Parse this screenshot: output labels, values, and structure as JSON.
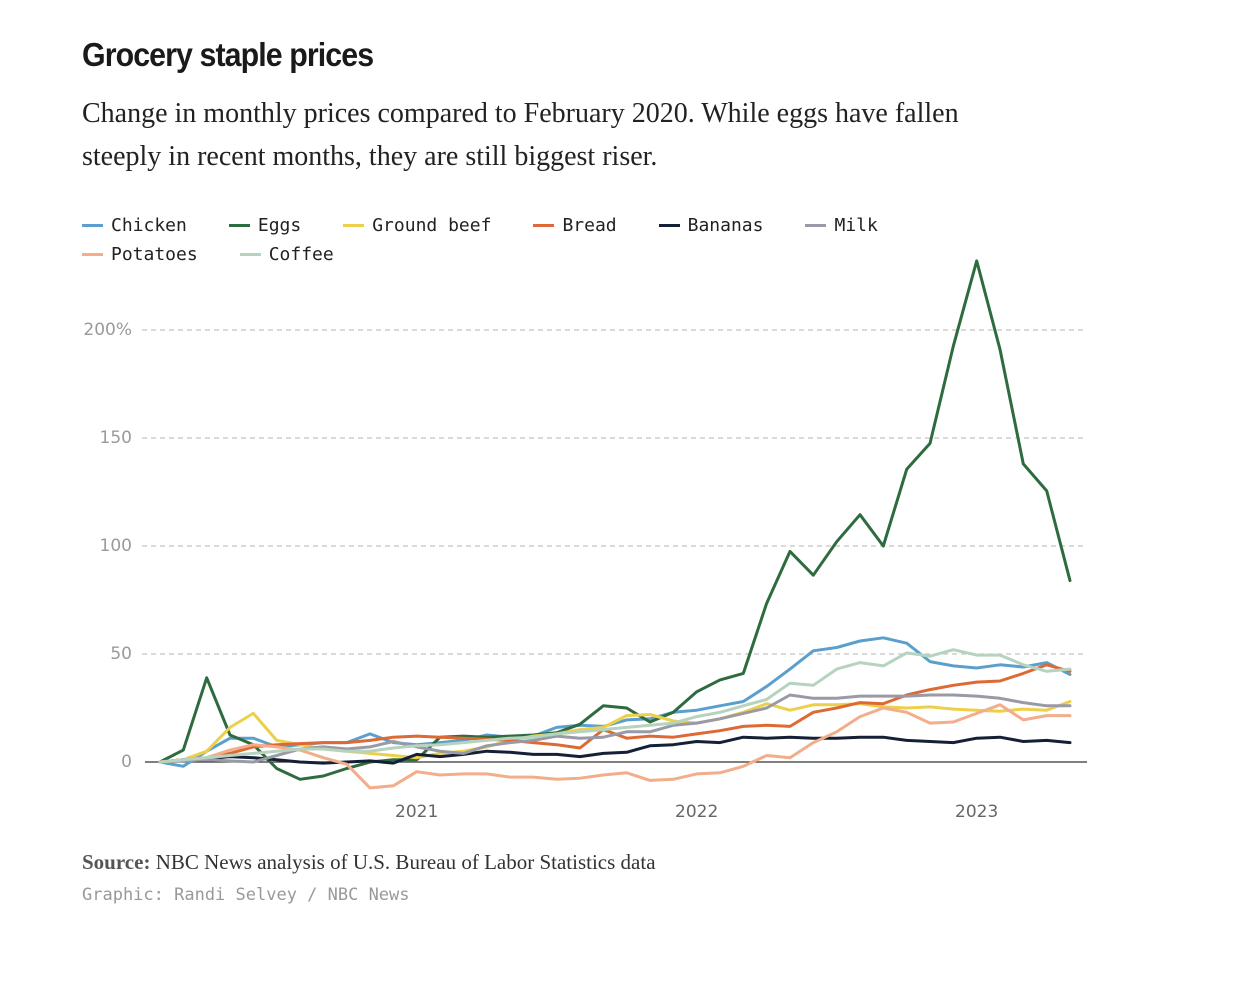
{
  "chart_data": {
    "type": "line",
    "title": "Grocery staple prices",
    "subtitle": "Change in monthly prices compared to February 2020. While eggs have fallen steeply in recent months, they are still biggest riser.",
    "categories": [
      null,
      null,
      null,
      null,
      null,
      null,
      null,
      null,
      null,
      null,
      null,
      "2021",
      null,
      null,
      null,
      null,
      null,
      null,
      null,
      null,
      null,
      null,
      null,
      "2022",
      null,
      null,
      null,
      null,
      null,
      null,
      null,
      null,
      null,
      null,
      null,
      "2023",
      null,
      null,
      null,
      null
    ],
    "series": [
      {
        "name": "Chicken",
        "color": "#5b9fcf",
        "values": [
          0,
          -2,
          5,
          11,
          11,
          7,
          8,
          9,
          9,
          13,
          9,
          8,
          9,
          10,
          12.5,
          11.5,
          12,
          16,
          17,
          16.5,
          19.5,
          20,
          23,
          24,
          26,
          28,
          35,
          43,
          51.5,
          53,
          56,
          57.5,
          55,
          46.5,
          44.5,
          43.5,
          45,
          44,
          46,
          40.5
        ]
      },
      {
        "name": "Eggs",
        "color": "#2e6b3f",
        "values": [
          0,
          5.5,
          39,
          12.5,
          8,
          -3,
          -8,
          -6.5,
          -3,
          0,
          1,
          1,
          11.5,
          12,
          11.5,
          12,
          12.5,
          13.5,
          17.5,
          26,
          25,
          18.5,
          23,
          32.5,
          38,
          41,
          73.5,
          97.5,
          86.5,
          102,
          114.5,
          100,
          135.5,
          147.5,
          192.5,
          232,
          191,
          138,
          125.5,
          84
        ]
      },
      {
        "name": "Ground beef",
        "color": "#ecd04a",
        "values": [
          0,
          1,
          5,
          16,
          22.5,
          10,
          8,
          6,
          5,
          4,
          3,
          2,
          4,
          5,
          7,
          10,
          12,
          13,
          15,
          16,
          21.5,
          22,
          19,
          18,
          20,
          23,
          27,
          24,
          26.5,
          26.5,
          27,
          25.5,
          25,
          25.5,
          24.5,
          24,
          23.5,
          24.5,
          24,
          28
        ]
      },
      {
        "name": "Bread",
        "color": "#dd6a34",
        "values": [
          0,
          1,
          2,
          4,
          7,
          8,
          8.5,
          9,
          9,
          10,
          11.5,
          12,
          11.5,
          11,
          10.5,
          10,
          9,
          8,
          6.5,
          15,
          11,
          12,
          11.5,
          13,
          14.5,
          16.5,
          17,
          16.5,
          23,
          25,
          27.5,
          27,
          31,
          33.5,
          35.5,
          37,
          37.5,
          41,
          45,
          42
        ]
      },
      {
        "name": "Bananas",
        "color": "#152036",
        "values": [
          0,
          1,
          1.5,
          2.5,
          2,
          1,
          0,
          -0.5,
          0,
          0.5,
          -0.5,
          3.5,
          2.5,
          3.5,
          5,
          4.5,
          3.5,
          3.5,
          2.5,
          4,
          4.5,
          7.5,
          8,
          9.5,
          9,
          11.5,
          11,
          11.5,
          11,
          11,
          11.5,
          11.5,
          10,
          9.5,
          9,
          11,
          11.5,
          9.5,
          10,
          9
        ]
      },
      {
        "name": "Milk",
        "color": "#9a99a6",
        "values": [
          0,
          0.5,
          1,
          0.5,
          0,
          3,
          6,
          7,
          6,
          7,
          9.5,
          7,
          5,
          4,
          7.5,
          9,
          10,
          12,
          11,
          11.5,
          14,
          14,
          17,
          18,
          20,
          22.5,
          25,
          31,
          29.5,
          29.5,
          30.5,
          30.5,
          30.5,
          31,
          31,
          30.5,
          29.5,
          27.5,
          26,
          26
        ]
      },
      {
        "name": "Potatoes",
        "color": "#f3ad8a",
        "values": [
          0,
          1,
          2,
          5.5,
          8,
          7,
          5.5,
          2,
          -1,
          -12,
          -11,
          -4.5,
          -6,
          -5.5,
          -5.5,
          -7,
          -7,
          -8,
          -7.5,
          -6,
          -5,
          -8.5,
          -8,
          -5.5,
          -5,
          -2,
          3,
          2,
          9,
          14,
          21,
          25,
          23,
          18,
          18.5,
          22.5,
          26.5,
          19.5,
          21.5,
          21.5
        ]
      },
      {
        "name": "Coffee",
        "color": "#b5d3be",
        "values": [
          0,
          1,
          2,
          3,
          4,
          5,
          6,
          6,
          5,
          5,
          6.5,
          7.5,
          8,
          9,
          10,
          11,
          11.5,
          13,
          14,
          15,
          16,
          17,
          18,
          21,
          23,
          26,
          29,
          36.5,
          35.5,
          43,
          46,
          44.5,
          50.5,
          49,
          52,
          49.5,
          49.5,
          45,
          42,
          43
        ]
      }
    ],
    "ylim": [
      -15,
      235
    ],
    "yticks": [
      0,
      50,
      100,
      150,
      {
        "value": 200,
        "label": "200%"
      }
    ],
    "grid": true,
    "source_label": "Source:",
    "source": "NBC News analysis of U.S. Bureau of Labor Statistics data",
    "credit": "Graphic: Randi Selvey / NBC News"
  }
}
